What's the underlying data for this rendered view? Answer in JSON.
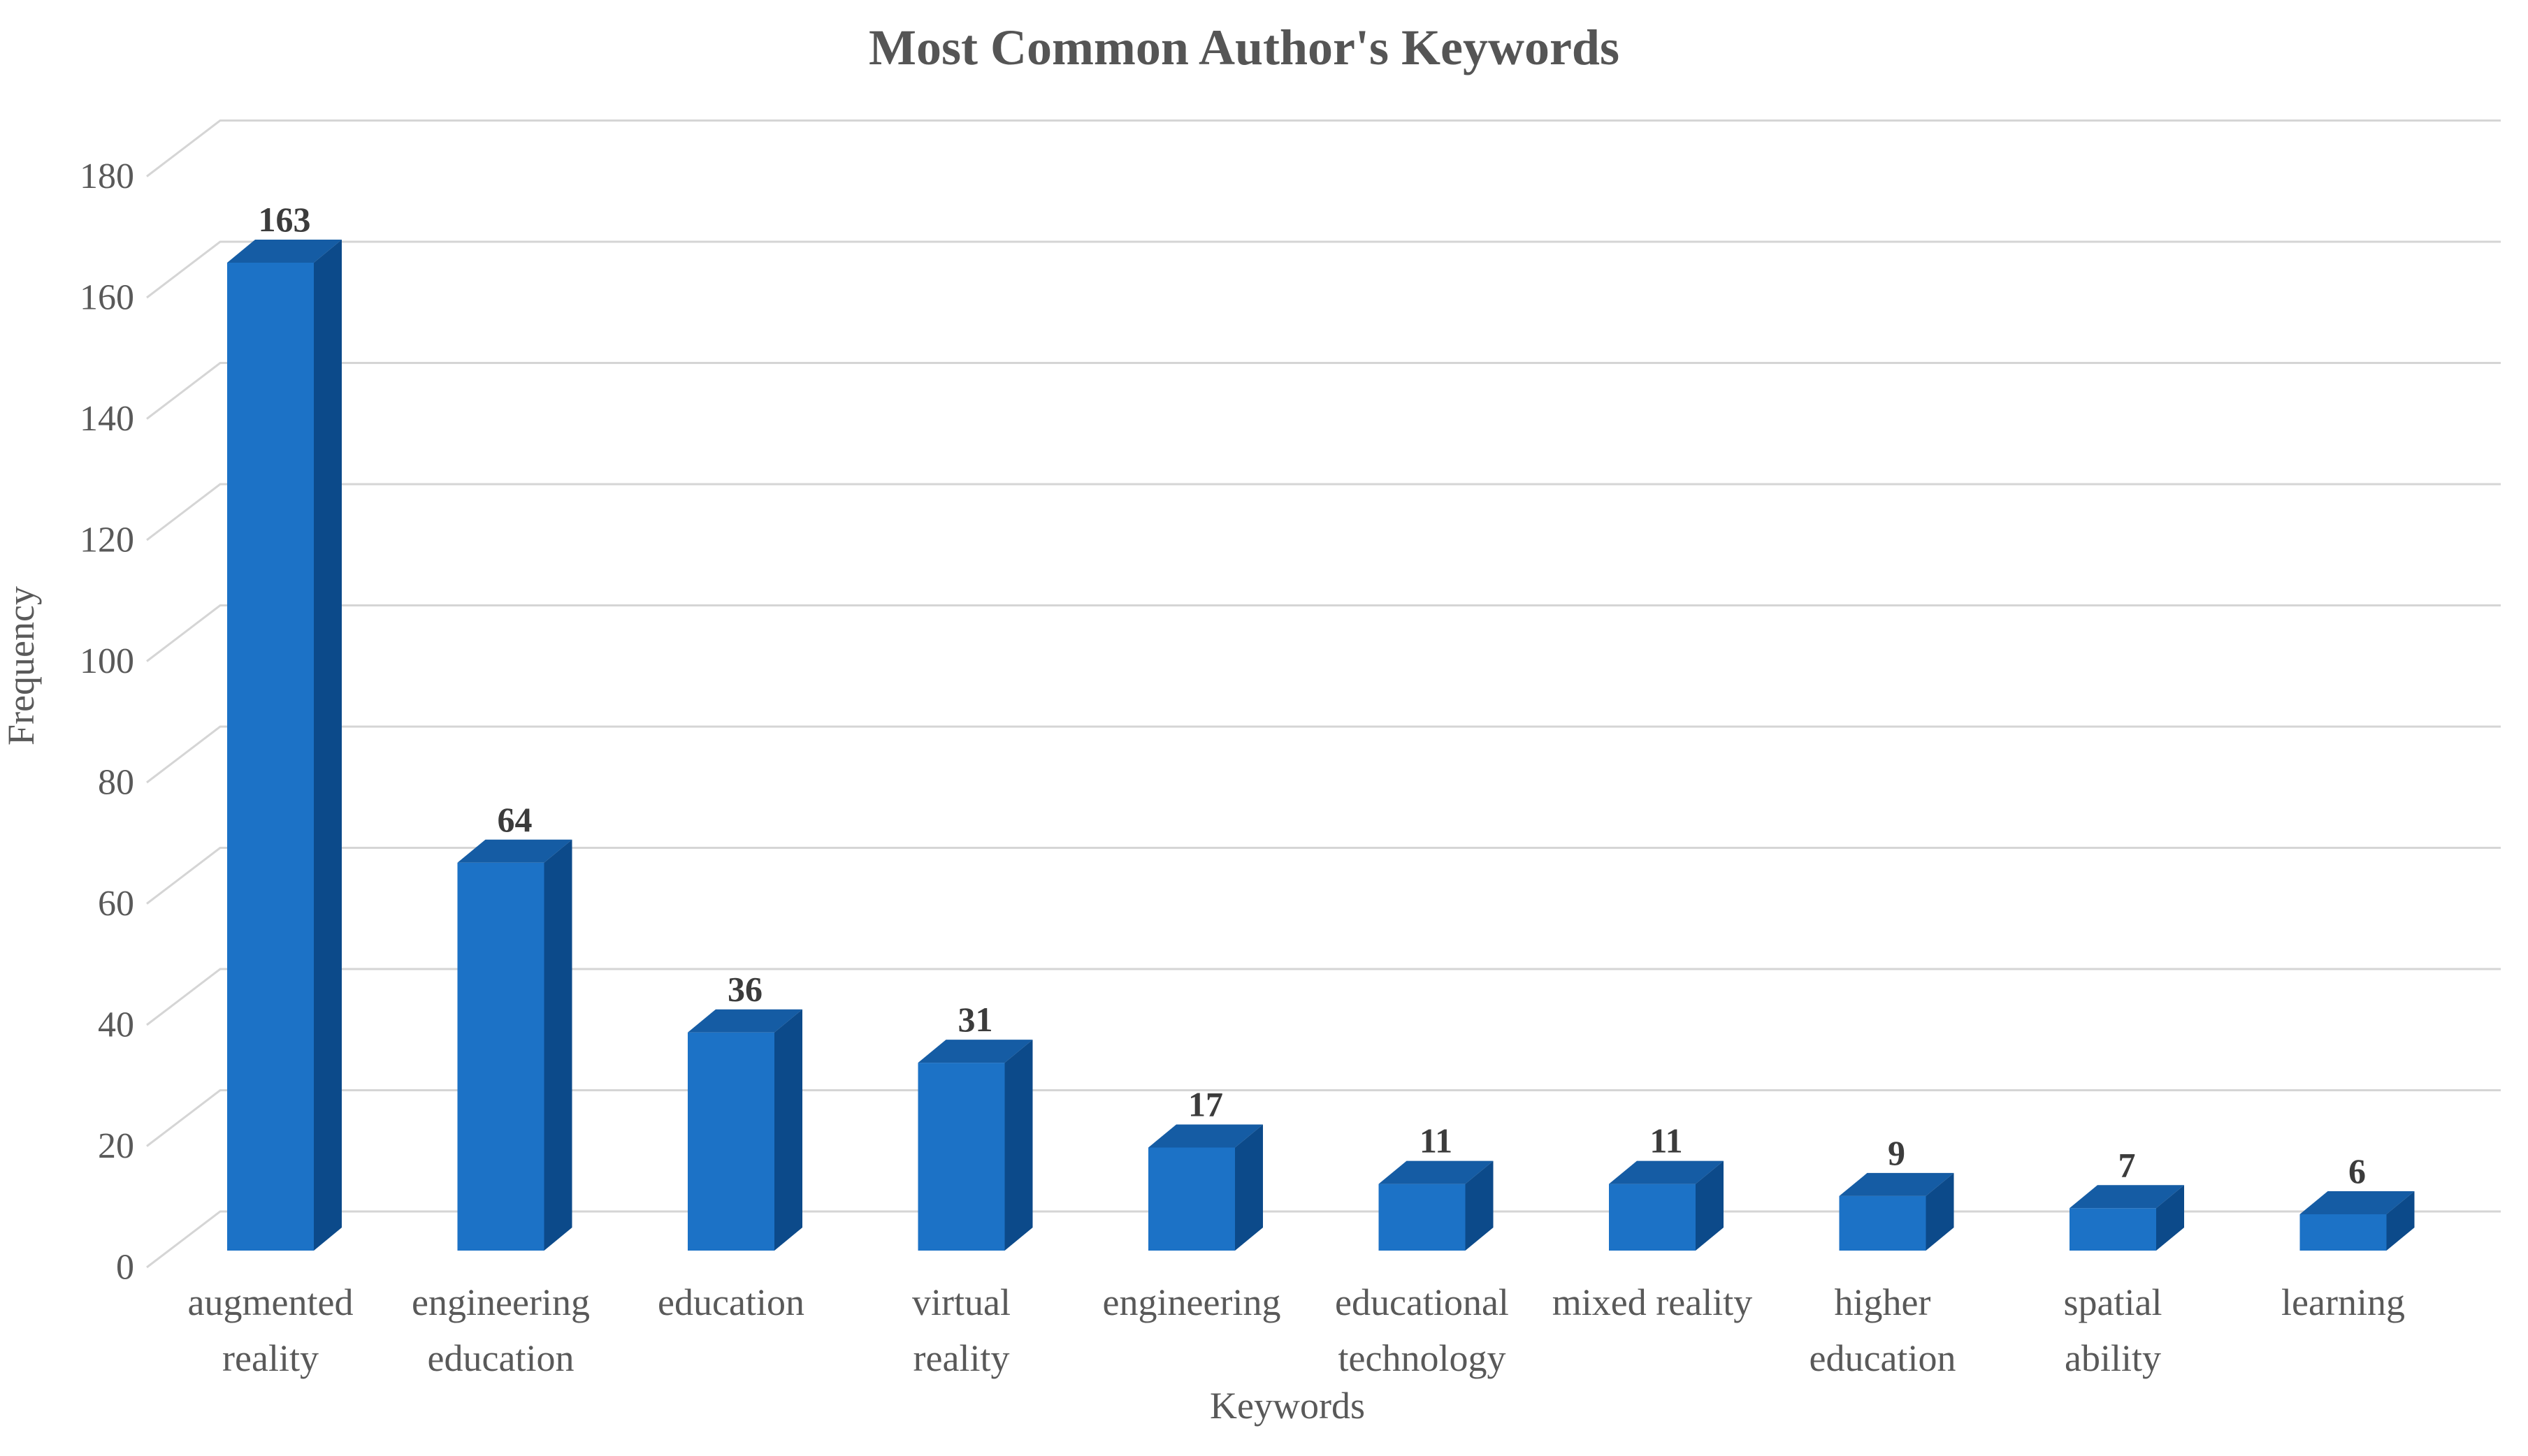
{
  "chart_data": {
    "type": "bar",
    "style": "3d-column",
    "title": "Most Common Author's Keywords",
    "xlabel": "Keywords",
    "ylabel": "Frequency",
    "categories": [
      "augmented reality",
      "engineering education",
      "education",
      "virtual reality",
      "engineering",
      "educational technology",
      "mixed reality",
      "higher education",
      "spatial ability",
      "learning"
    ],
    "category_lines": [
      [
        "augmented",
        "reality"
      ],
      [
        "engineering",
        "education"
      ],
      [
        "education"
      ],
      [
        "virtual",
        "reality"
      ],
      [
        "engineering"
      ],
      [
        "educational",
        "technology"
      ],
      [
        "mixed reality"
      ],
      [
        "higher",
        "education"
      ],
      [
        "spatial",
        "ability"
      ],
      [
        "learning"
      ]
    ],
    "values": [
      163,
      64,
      36,
      31,
      17,
      11,
      11,
      9,
      7,
      6
    ],
    "value_labels": [
      "163",
      "64",
      "36",
      "31",
      "17",
      "11",
      "11",
      "9",
      "7",
      "6"
    ],
    "ylim": [
      0,
      180
    ],
    "ytick_step": 20,
    "yticks": [
      0,
      20,
      40,
      60,
      80,
      100,
      120,
      140,
      160,
      180
    ],
    "ytick_labels": [
      "0",
      "20",
      "40",
      "60",
      "80",
      "100",
      "120",
      "140",
      "160",
      "180"
    ],
    "grid": true,
    "legend": false,
    "colors": {
      "background": "#FFFFFF",
      "bar_front": "#1C72C6",
      "bar_side": "#0C4A8A",
      "bar_top": "#155CA4",
      "grid": "#D5D5D5",
      "axis_text": "#595959",
      "value_label": "#3C3C3C",
      "title": "#555555"
    }
  }
}
